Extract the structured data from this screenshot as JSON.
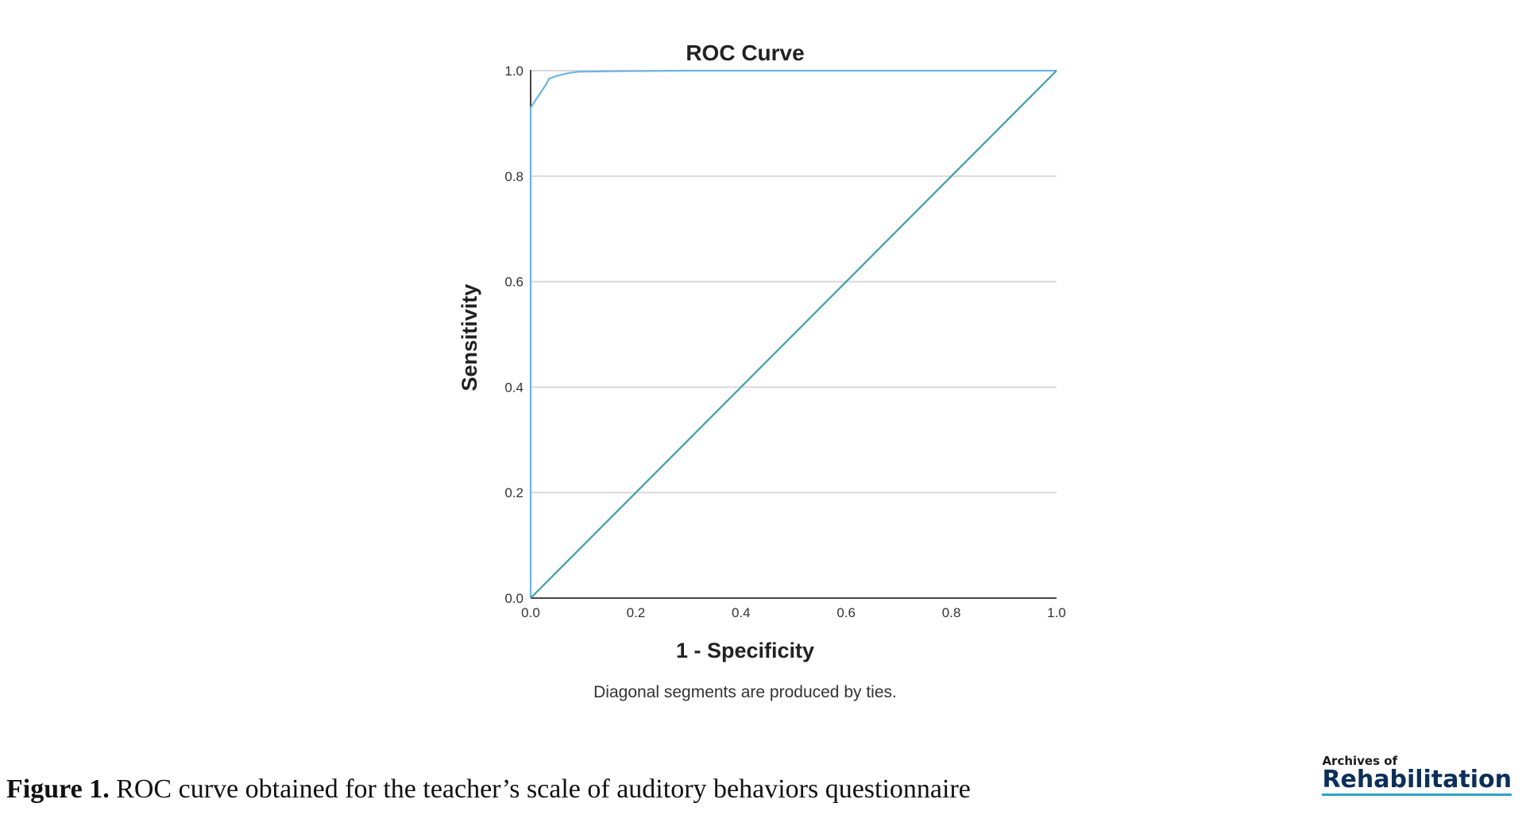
{
  "chart_data": {
    "type": "line",
    "title": "ROC Curve",
    "xlabel": "1 - Specificity",
    "ylabel": "Sensitivity",
    "xlim": [
      0,
      1
    ],
    "ylim": [
      0,
      1
    ],
    "xticks": [
      0,
      0.2,
      0.4,
      0.6,
      0.8,
      1.0
    ],
    "yticks": [
      0,
      0.2,
      0.4,
      0.6,
      0.8,
      1.0
    ],
    "xtick_labels": [
      "0.0",
      "0.2",
      "0.4",
      "0.6",
      "0.8",
      "1.0"
    ],
    "ytick_labels": [
      "0.0",
      "0.2",
      "0.4",
      "0.6",
      "0.8",
      "1.0"
    ],
    "grid": "horizontal",
    "series": [
      {
        "color": "#6cb4e4",
        "x": [
          0,
          0,
          0.01,
          0.02,
          0.03,
          0.035,
          0.05,
          0.07,
          0.09,
          0.15,
          0.3,
          1.0
        ],
        "y": [
          0,
          0.93,
          0.945,
          0.96,
          0.975,
          0.985,
          0.99,
          0.995,
          0.998,
          0.999,
          1.0,
          1.0
        ]
      },
      {
        "color": "#3f9ea8",
        "x": [
          0,
          1
        ],
        "y": [
          0,
          1
        ]
      }
    ],
    "footnote": "Diagonal segments are produced by ties."
  },
  "caption": {
    "label": "Figure 1.",
    "text": " ROC curve obtained for the teacher’s scale of auditory behaviors questionnaire"
  },
  "logo": {
    "line1": "Archives of",
    "line2": "Rehabilitation"
  }
}
